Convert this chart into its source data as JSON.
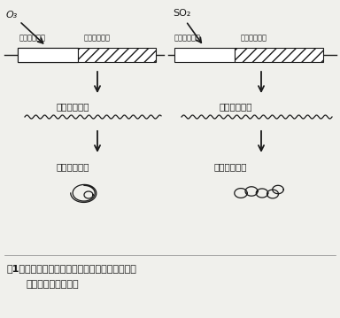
{
  "bg_color": "#f0f0ec",
  "title_line1": "図1　異なる大気氚染ガスによりタンパク質が成",
  "title_line2": "される道筋の模式図",
  "o3_label": "O₃",
  "so2_label": "SO₂",
  "gene_label_a1": "調節遣伝子ａ",
  "gene_label_a2": "構造遣伝子ａ",
  "gene_label_b1": "調節遣伝子ｂ",
  "gene_label_b2": "構造遣伝子ｂ",
  "mrna_a": "伝令ＲＮＡａ",
  "mrna_b": "伝令ＲＮＡｂ",
  "protein_a": "タンパク貪ａ",
  "protein_b": "タンパク貪ｂ",
  "lc": "#1a1a1a",
  "tc": "#1a1a1a"
}
